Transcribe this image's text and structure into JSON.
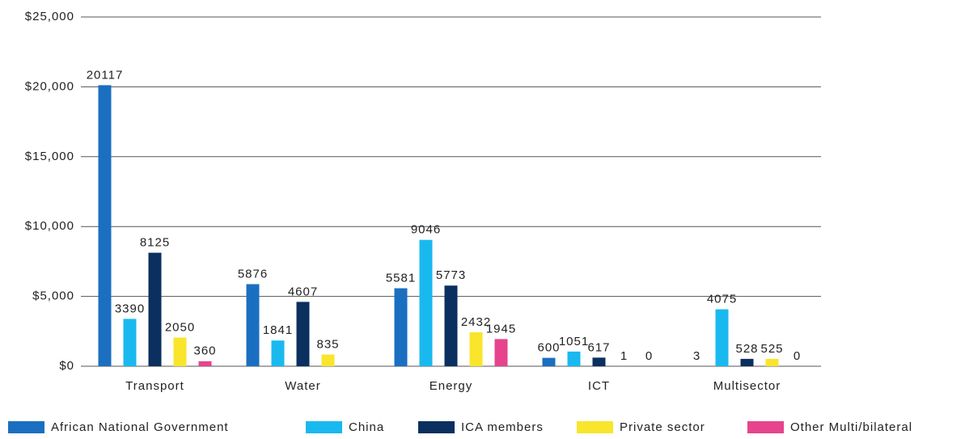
{
  "chart_data": {
    "type": "bar",
    "categories": [
      "Transport",
      "Water",
      "Energy",
      "ICT",
      "Multisector"
    ],
    "series": [
      {
        "name": "African National Government",
        "color": "#1b6fc0",
        "values": [
          20117,
          5876,
          5581,
          600,
          3
        ]
      },
      {
        "name": "China",
        "color": "#19b9ef",
        "values": [
          3390,
          1841,
          9046,
          1051,
          4075
        ]
      },
      {
        "name": "ICA members",
        "color": "#0b2f5f",
        "values": [
          8125,
          4607,
          5773,
          617,
          528
        ]
      },
      {
        "name": "Private sector",
        "color": "#f9e52b",
        "values": [
          2050,
          835,
          2432,
          1,
          525
        ]
      },
      {
        "name": "Other Multi/bilateral",
        "color": "#e6448c",
        "values": [
          360,
          null,
          1945,
          0,
          0
        ]
      }
    ],
    "ylim": [
      0,
      25000
    ],
    "yticks": [
      {
        "value": 0,
        "label": "$0"
      },
      {
        "value": 5000,
        "label": "$5,000"
      },
      {
        "value": 10000,
        "label": "$10,000"
      },
      {
        "value": 15000,
        "label": "$15,000"
      },
      {
        "value": 20000,
        "label": "$20,000"
      },
      {
        "value": 25000,
        "label": "$25,000"
      }
    ],
    "grid": true,
    "legend": "bottom"
  }
}
